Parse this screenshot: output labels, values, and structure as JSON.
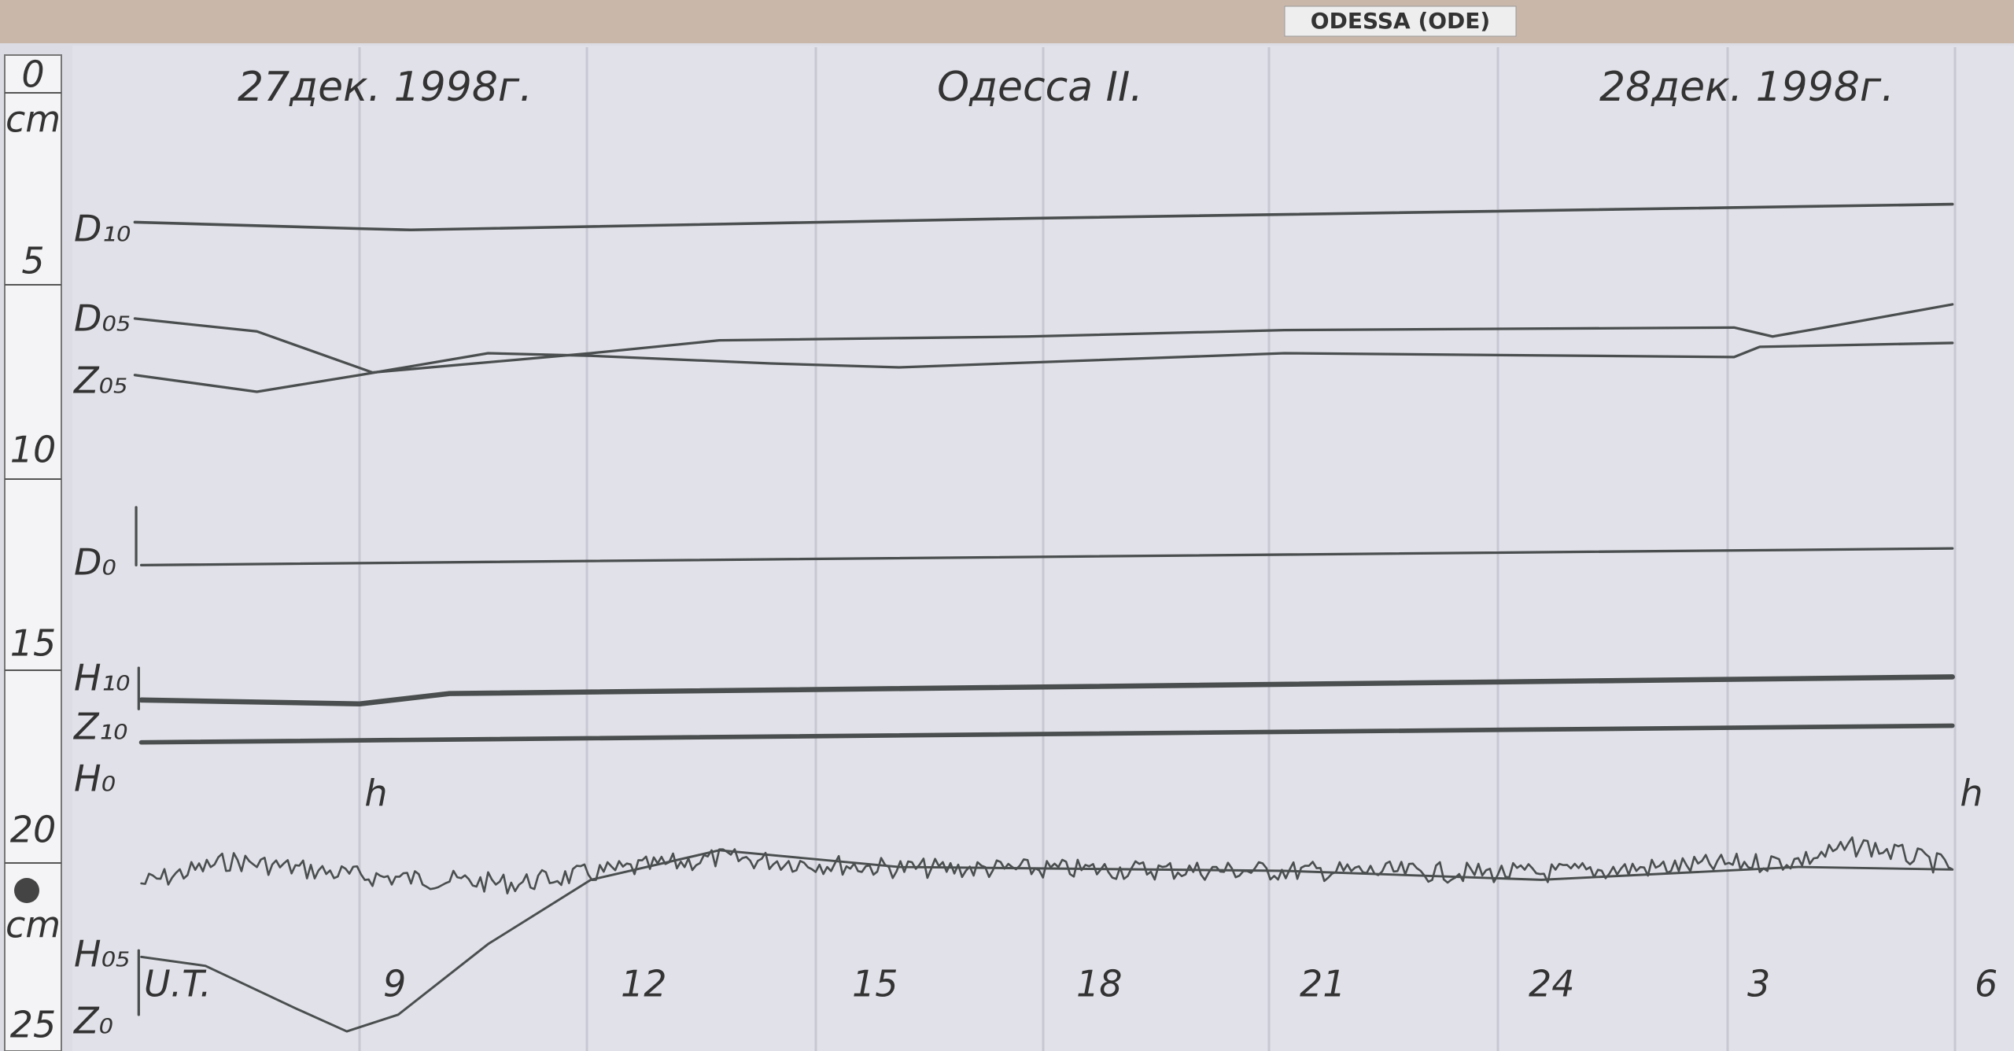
{
  "header": {
    "station": "ODESSA (ODE)",
    "date_start": "27дек. 1998г.",
    "title": "Одесса II.",
    "date_end": "28дек. 1998г."
  },
  "ruler": {
    "labels": [
      "0",
      "cm",
      "5",
      "10",
      "15",
      "20",
      "cm",
      "25"
    ]
  },
  "traces": {
    "labels": [
      "D₁₀",
      "D₀₅",
      "Z₀₅",
      "D₀",
      "H₁₀",
      "Z₁₀",
      "H₀",
      "H₀₅",
      "Z₀"
    ]
  },
  "time_axis": {
    "labels": [
      "U.T.",
      "9",
      "12",
      "15",
      "18",
      "21",
      "24",
      "3",
      "6"
    ]
  },
  "hour_marks": [
    "h",
    "h"
  ]
}
